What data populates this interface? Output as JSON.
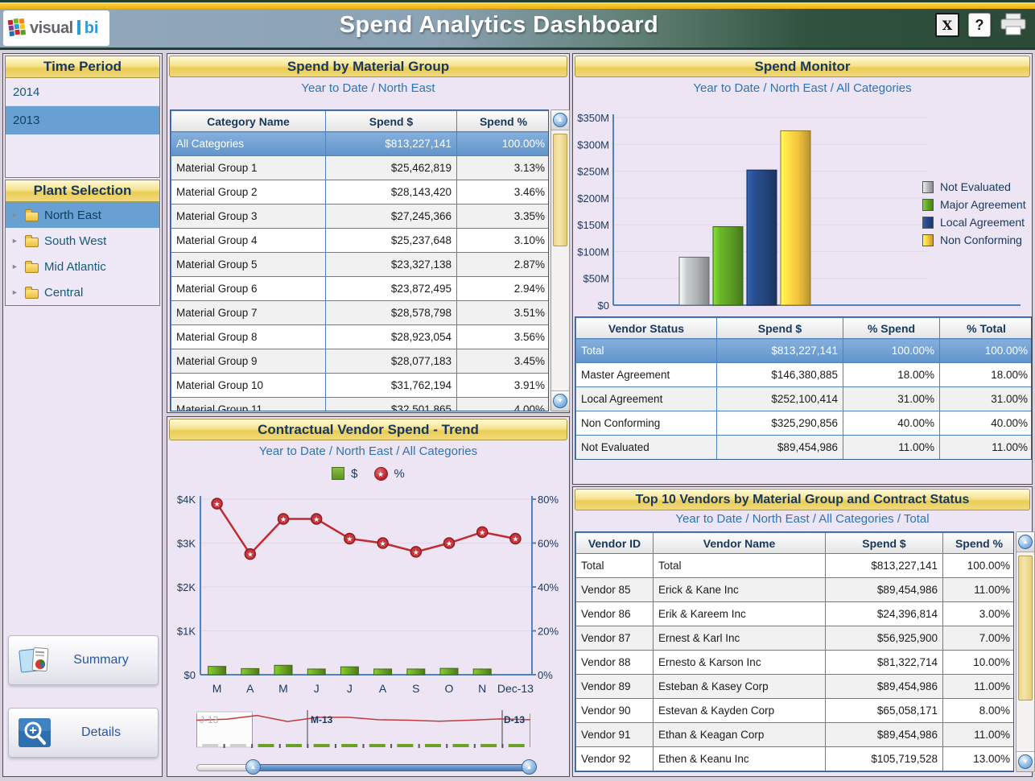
{
  "header": {
    "title": "Spend Analytics Dashboard",
    "logo": {
      "gray": "visual",
      "blue": "bi"
    },
    "toolbar": {
      "export_icon": "X",
      "help_icon": "?"
    }
  },
  "glyphs": {
    "up": "▲",
    "down": "▼",
    "right": "►",
    "star": "★"
  },
  "sidebar": {
    "time_period": {
      "title": "Time Period",
      "items": [
        {
          "label": "2014",
          "selected": false
        },
        {
          "label": "2013",
          "selected": true
        }
      ]
    },
    "plant_selection": {
      "title": "Plant Selection",
      "items": [
        {
          "label": "North East",
          "selected": true
        },
        {
          "label": "South West",
          "selected": false
        },
        {
          "label": "Mid Atlantic",
          "selected": false
        },
        {
          "label": "Central",
          "selected": false
        }
      ]
    },
    "summary_button": "Summary",
    "details_button": "Details"
  },
  "material_group": {
    "title": "Spend by Material Group",
    "subtitle": "Year to Date / North East",
    "columns": [
      "Category Name",
      "Spend $",
      "Spend %"
    ],
    "aligns": [
      "left",
      "right",
      "right"
    ],
    "selected_row": 0,
    "rows": [
      [
        "All Categories",
        "$813,227,141",
        "100.00%"
      ],
      [
        "Material Group 1",
        "$25,462,819",
        "3.13%"
      ],
      [
        "Material Group 2",
        "$28,143,420",
        "3.46%"
      ],
      [
        "Material Group 3",
        "$27,245,366",
        "3.35%"
      ],
      [
        "Material Group 4",
        "$25,237,648",
        "3.10%"
      ],
      [
        "Material Group 5",
        "$23,327,138",
        "2.87%"
      ],
      [
        "Material Group 6",
        "$23,872,495",
        "2.94%"
      ],
      [
        "Material Group 7",
        "$28,578,798",
        "3.51%"
      ],
      [
        "Material Group 8",
        "$28,923,054",
        "3.56%"
      ],
      [
        "Material Group 9",
        "$28,077,183",
        "3.45%"
      ],
      [
        "Material Group 10",
        "$31,762,194",
        "3.91%"
      ],
      [
        "Material Group 11",
        "$32,501,865",
        "4.00%"
      ]
    ]
  },
  "trend": {
    "title": "Contractual Vendor Spend - Trend",
    "subtitle": "Year to Date / North East / All Categories",
    "legend": [
      {
        "label": "$",
        "shape": "square"
      },
      {
        "label": "%",
        "shape": "circle-star"
      }
    ],
    "minimap": {
      "labels": {
        "left": "J-13",
        "mid": "M-13",
        "right": "D-13"
      }
    }
  },
  "spend_monitor": {
    "title": "Spend Monitor",
    "subtitle": "Year to Date / North East / All Categories",
    "legend": [
      {
        "label": "Not Evaluated",
        "color": "#AEB2B5"
      },
      {
        "label": "Major Agreement",
        "color": "#5C9E25"
      },
      {
        "label": "Local Agreement",
        "color": "#24457E"
      },
      {
        "label": "Non Conforming",
        "color": "#F2C23C"
      }
    ],
    "columns": [
      "Vendor Status",
      "Spend $",
      "% Spend",
      "% Total"
    ],
    "aligns": [
      "left",
      "right",
      "right",
      "right"
    ],
    "selected_row": 0,
    "rows": [
      [
        "Total",
        "$813,227,141",
        "100.00%",
        "100.00%"
      ],
      [
        "Master Agreement",
        "$146,380,885",
        "18.00%",
        "18.00%"
      ],
      [
        "Local Agreement",
        "$252,100,414",
        "31.00%",
        "31.00%"
      ],
      [
        "Non Conforming",
        "$325,290,856",
        "40.00%",
        "40.00%"
      ],
      [
        "Not Evaluated",
        "$89,454,986",
        "11.00%",
        "11.00%"
      ]
    ]
  },
  "top_vendors": {
    "title": "Top 10 Vendors by Material Group and Contract Status",
    "subtitle": "Year to Date / North East / All Categories / Total",
    "columns": [
      "Vendor ID",
      "Vendor Name",
      "Spend $",
      "Spend %"
    ],
    "aligns": [
      "left",
      "left",
      "right",
      "right"
    ],
    "selected_row": -1,
    "rows": [
      [
        "Total",
        "Total",
        "$813,227,141",
        "100.00%"
      ],
      [
        "Vendor 85",
        "Erick & Kane Inc",
        "$89,454,986",
        "11.00%"
      ],
      [
        "Vendor 86",
        "Erik & Kareem Inc",
        "$24,396,814",
        "3.00%"
      ],
      [
        "Vendor 87",
        "Ernest & Karl Inc",
        "$56,925,900",
        "7.00%"
      ],
      [
        "Vendor 88",
        "Ernesto & Karson Inc",
        "$81,322,714",
        "10.00%"
      ],
      [
        "Vendor 89",
        "Esteban & Kasey Corp",
        "$89,454,986",
        "11.00%"
      ],
      [
        "Vendor 90",
        "Estevan & Kayden Corp",
        "$65,058,171",
        "8.00%"
      ],
      [
        "Vendor 91",
        "Ethan & Keagan Corp",
        "$89,454,986",
        "11.00%"
      ],
      [
        "Vendor 92",
        "Ethen & Keanu Inc",
        "$105,719,528",
        "13.00%"
      ]
    ]
  },
  "chart_data": [
    {
      "id": "spend_monitor_bar",
      "type": "bar",
      "categories": [
        "Not Evaluated",
        "Major Agreement",
        "Local Agreement",
        "Non Conforming"
      ],
      "values_millions": [
        89.5,
        146.4,
        252.1,
        325.3
      ],
      "colors": [
        "#AEB2B5",
        "#5C9E25",
        "#24457E",
        "#F2C23C"
      ],
      "yticks": [
        "$0",
        "$50M",
        "$100M",
        "$150M",
        "$200M",
        "$250M",
        "$300M",
        "$350M"
      ],
      "ylim_millions": [
        0,
        350
      ],
      "grid": true,
      "legend_position": "right",
      "title": "Spend Monitor",
      "xlabel": "",
      "ylabel": ""
    },
    {
      "id": "vendor_trend",
      "type": "bar+line",
      "x": [
        "M",
        "A",
        "M",
        "J",
        "J",
        "A",
        "S",
        "O",
        "N",
        "Dec-13"
      ],
      "series": [
        {
          "name": "$",
          "type": "bar",
          "axis": "left",
          "color": "#69A023",
          "values": [
            190,
            140,
            215,
            130,
            180,
            130,
            130,
            145,
            130,
            0
          ]
        },
        {
          "name": "%",
          "type": "line",
          "axis": "right",
          "color": "#C22A31",
          "values": [
            78,
            55,
            71,
            71,
            62,
            60,
            56,
            60,
            65,
            62
          ]
        }
      ],
      "left_yticks": [
        "$0",
        "$1K",
        "$2K",
        "$3K",
        "$4K"
      ],
      "left_ylim": [
        0,
        4000
      ],
      "right_yticks": [
        "0%",
        "20%",
        "40%",
        "60%",
        "80%"
      ],
      "right_ylim": [
        0,
        80
      ],
      "minimap_values": [
        60,
        64,
        78,
        55,
        71,
        71,
        62,
        60,
        56,
        60,
        65,
        62
      ],
      "title": "Contractual Vendor Spend - Trend",
      "grid": true
    }
  ]
}
